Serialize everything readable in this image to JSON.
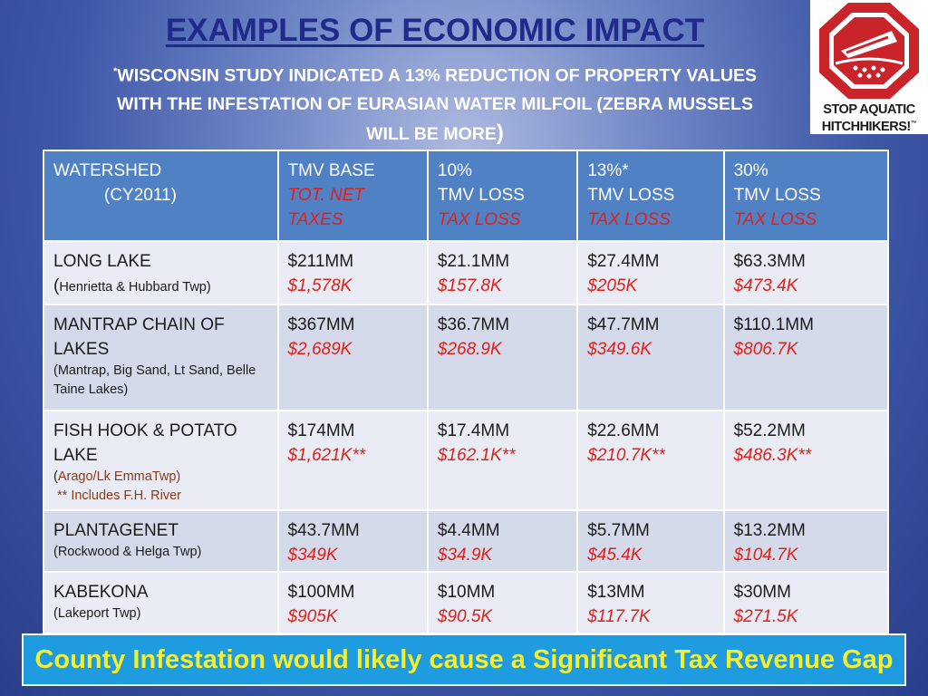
{
  "header": {
    "title": "EXAMPLES OF ECONOMIC IMPACT",
    "subtitle_star": "*",
    "subtitle_line1": "WISCONSIN STUDY INDICATED A 13% REDUCTION OF PROPERTY VALUES",
    "subtitle_line2": "WITH THE INFESTATION OF EURASIAN WATER MILFOIL (ZEBRA MUSSELS",
    "subtitle_line3": "WILL BE MORE",
    "subtitle_close": ")"
  },
  "logo": {
    "icon": "stop-sign-boat-icon",
    "line1": "STOP AQUATIC",
    "line2": "HITCHHIKERS!",
    "trademark": "™",
    "colors": {
      "sign_red": "#c8242a",
      "sign_white": "#ffffff"
    }
  },
  "table": {
    "headers": [
      {
        "line1": "WATERSHED",
        "line2": "(CY2011)"
      },
      {
        "line1": "TMV BASE",
        "line2": "TOT. NET",
        "line3": "TAXES"
      },
      {
        "line1": "10%",
        "line2": "TMV LOSS",
        "line3": "TAX LOSS"
      },
      {
        "line1": "13%*",
        "line2": "TMV LOSS",
        "line3": "TAX LOSS"
      },
      {
        "line1": "30%",
        "line2": "TMV LOSS",
        "line3": "TAX LOSS"
      }
    ],
    "rows": [
      {
        "name": "LONG LAKE",
        "detail_paren": "(",
        "detail": "Henrietta & Hubbard Twp)",
        "cells": [
          {
            "tmv": "$211MM",
            "tax": "$1,578K"
          },
          {
            "tmv": "$21.1MM",
            "tax": "$157.8K"
          },
          {
            "tmv": "$27.4MM",
            "tax": "$205K"
          },
          {
            "tmv": "$63.3MM",
            "tax": "$473.4K"
          }
        ]
      },
      {
        "name_line1": "MANTRAP CHAIN OF",
        "name_line2": "LAKES",
        "detail_line1": "(Mantrap, Big Sand, Lt Sand, Belle",
        "detail_line2": "Taine Lakes)",
        "cells": [
          {
            "tmv": "$367MM",
            "tax": "$2,689K"
          },
          {
            "tmv": "$36.7MM",
            "tax": "$268.9K"
          },
          {
            "tmv": "$47.7MM",
            "tax": "$349.6K"
          },
          {
            "tmv": "$110.1MM",
            "tax": "$806.7K"
          }
        ]
      },
      {
        "name_line1": "FISH HOOK & POTATO",
        "name_line2": "LAKE",
        "detail_line1": "Arago/Lk EmmaTwp)",
        "detail_line2": "** Includes F.H. River",
        "cells": [
          {
            "tmv": "$174MM",
            "tax": "$1,621K**"
          },
          {
            "tmv": "$17.4MM",
            "tax": "$162.1K**"
          },
          {
            "tmv": "$22.6MM",
            "tax": "$210.7K**"
          },
          {
            "tmv": "$52.2MM",
            "tax": "$486.3K**"
          }
        ]
      },
      {
        "name": "PLANTAGENET",
        "detail": "(Rockwood & Helga Twp)",
        "cells": [
          {
            "tmv": "$43.7MM",
            "tax": "$349K"
          },
          {
            "tmv": "$4.4MM",
            "tax": "$34.9K"
          },
          {
            "tmv": "$5.7MM",
            "tax": "$45.4K"
          },
          {
            "tmv": "$13.2MM",
            "tax": "$104.7K"
          }
        ]
      },
      {
        "name": "KABEKONA",
        "detail": "(Lakeport Twp)",
        "cells": [
          {
            "tmv": "$100MM",
            "tax": "$905K"
          },
          {
            "tmv": "$10MM",
            "tax": "$90.5K"
          },
          {
            "tmv": "$13MM",
            "tax": "$117.7K"
          },
          {
            "tmv": "$30MM",
            "tax": "$271.5K"
          }
        ]
      }
    ]
  },
  "footer": {
    "banner": "County Infestation would likely cause a Significant Tax Revenue Gap"
  },
  "colors": {
    "title": "#1f2a8a",
    "header_cell": "#4f81c4",
    "row_odd": "#d4daea",
    "row_even": "#e9ecf4",
    "red_values": "#e0201a",
    "banner_bg": "#1f9be0",
    "banner_text": "#f2ef2e"
  }
}
